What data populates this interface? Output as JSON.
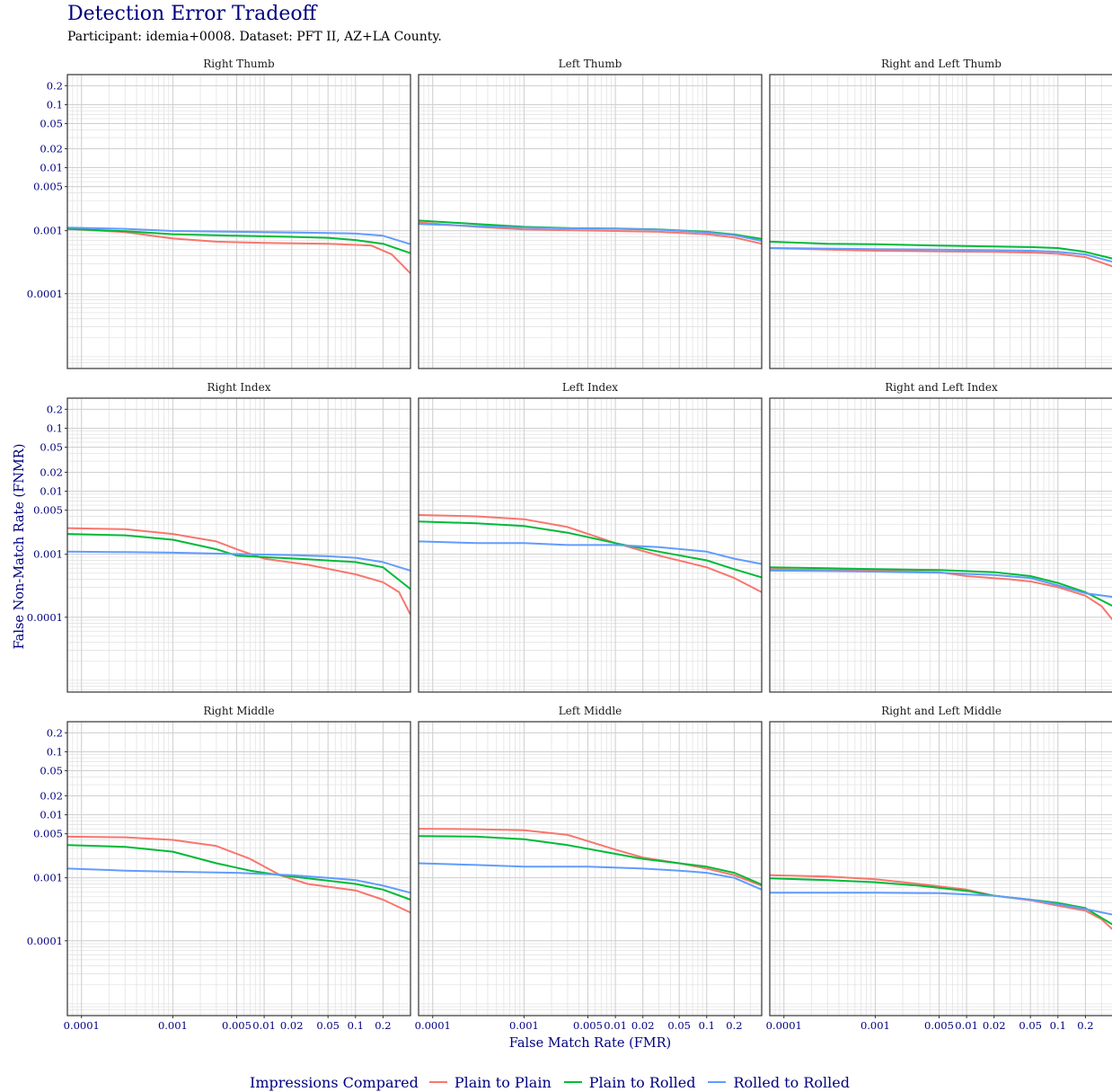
{
  "chart_data": {
    "type": "line",
    "title": "Detection Error Tradeoff",
    "subtitle": "Participant: idemia+0008. Dataset: PFT II, AZ+LA County.",
    "xlabel": "False Match Rate (FMR)",
    "ylabel": "False Non-Match Rate (FNMR)",
    "x_scale": "log",
    "y_scale": "log",
    "xlim": [
      7e-05,
      0.4
    ],
    "ylim": [
      6.5e-06,
      0.3
    ],
    "x_ticks": [
      0.0001,
      0.001,
      0.005,
      0.01,
      0.02,
      0.05,
      0.1,
      0.2
    ],
    "x_tick_labels": [
      "0.0001",
      "0.001",
      "0.005",
      "0.01",
      "0.02",
      "0.05",
      "0.1",
      "0.2"
    ],
    "y_ticks": [
      0.2,
      0.1,
      0.05,
      0.02,
      0.01,
      0.005,
      0.001,
      0.0001
    ],
    "y_tick_labels": [
      "0.2",
      "0.1",
      "0.05",
      "0.02",
      "0.01",
      "0.005",
      "0.001",
      "0.0001"
    ],
    "grid": true,
    "legend": {
      "title": "Impressions Compared",
      "position": "bottom",
      "entries": [
        {
          "label": "Plain to Plain",
          "color": "#F8766D"
        },
        {
          "label": "Plain to Rolled",
          "color": "#00BA38"
        },
        {
          "label": "Rolled to Rolled",
          "color": "#619CFF"
        }
      ]
    },
    "panels": [
      {
        "title": "Right Thumb",
        "series": [
          {
            "name": "Plain to Plain",
            "x": [
              7e-05,
              0.0003,
              0.001,
              0.003,
              0.01,
              0.05,
              0.15,
              0.25,
              0.4
            ],
            "y": [
              0.00107,
              0.00095,
              0.00075,
              0.00067,
              0.00064,
              0.00062,
              0.00058,
              0.00042,
              0.00021
            ]
          },
          {
            "name": "Plain to Rolled",
            "x": [
              7e-05,
              0.0003,
              0.001,
              0.005,
              0.02,
              0.05,
              0.1,
              0.2,
              0.4
            ],
            "y": [
              0.00107,
              0.00098,
              0.00088,
              0.00083,
              0.0008,
              0.00077,
              0.00071,
              0.00062,
              0.00044
            ]
          },
          {
            "name": "Rolled to Rolled",
            "x": [
              7e-05,
              0.0003,
              0.001,
              0.005,
              0.02,
              0.05,
              0.1,
              0.2,
              0.4
            ],
            "y": [
              0.00112,
              0.00107,
              0.00099,
              0.00096,
              0.00094,
              0.00092,
              0.0009,
              0.00083,
              0.00061
            ]
          }
        ]
      },
      {
        "title": "Left Thumb",
        "series": [
          {
            "name": "Plain to Plain",
            "x": [
              7e-05,
              0.0003,
              0.001,
              0.003,
              0.01,
              0.03,
              0.1,
              0.2,
              0.4
            ],
            "y": [
              0.00135,
              0.00115,
              0.00105,
              0.00102,
              0.00099,
              0.00096,
              0.00088,
              0.00078,
              0.00062
            ]
          },
          {
            "name": "Plain to Rolled",
            "x": [
              7e-05,
              0.0003,
              0.001,
              0.003,
              0.01,
              0.03,
              0.1,
              0.2,
              0.4
            ],
            "y": [
              0.00145,
              0.00128,
              0.00115,
              0.0011,
              0.00108,
              0.00105,
              0.00096,
              0.00087,
              0.00074
            ]
          },
          {
            "name": "Rolled to Rolled",
            "x": [
              7e-05,
              0.0003,
              0.001,
              0.003,
              0.01,
              0.03,
              0.1,
              0.2,
              0.4
            ],
            "y": [
              0.00128,
              0.00118,
              0.00112,
              0.00109,
              0.00107,
              0.00104,
              0.00094,
              0.00085,
              0.00069
            ]
          }
        ]
      },
      {
        "title": "Right and Left Thumb",
        "series": [
          {
            "name": "Plain to Plain",
            "x": [
              7e-05,
              0.0003,
              0.001,
              0.005,
              0.02,
              0.05,
              0.1,
              0.2,
              0.4
            ],
            "y": [
              0.00053,
              0.0005,
              0.00048,
              0.00047,
              0.00046,
              0.00045,
              0.00043,
              0.00038,
              0.00027
            ]
          },
          {
            "name": "Plain to Rolled",
            "x": [
              7e-05,
              0.0003,
              0.001,
              0.005,
              0.02,
              0.05,
              0.1,
              0.2,
              0.4
            ],
            "y": [
              0.00067,
              0.00062,
              0.00061,
              0.00058,
              0.00056,
              0.00055,
              0.00053,
              0.00046,
              0.00036
            ]
          },
          {
            "name": "Rolled to Rolled",
            "x": [
              7e-05,
              0.0003,
              0.001,
              0.005,
              0.02,
              0.05,
              0.1,
              0.2,
              0.4
            ],
            "y": [
              0.00053,
              0.00052,
              0.00051,
              0.0005,
              0.00049,
              0.00048,
              0.00046,
              0.00042,
              0.00032
            ]
          }
        ]
      },
      {
        "title": "Right Index",
        "series": [
          {
            "name": "Plain to Plain",
            "x": [
              7e-05,
              0.0003,
              0.001,
              0.003,
              0.005,
              0.01,
              0.03,
              0.1,
              0.2,
              0.3,
              0.4
            ],
            "y": [
              0.0026,
              0.0025,
              0.0021,
              0.0016,
              0.0012,
              0.00085,
              0.00068,
              0.00048,
              0.00036,
              0.00025,
              0.00011
            ]
          },
          {
            "name": "Plain to Rolled",
            "x": [
              7e-05,
              0.0003,
              0.001,
              0.003,
              0.005,
              0.01,
              0.03,
              0.1,
              0.2,
              0.4
            ],
            "y": [
              0.0021,
              0.002,
              0.0017,
              0.0012,
              0.00095,
              0.0009,
              0.00083,
              0.00075,
              0.00062,
              0.00028
            ]
          },
          {
            "name": "Rolled to Rolled",
            "x": [
              7e-05,
              0.0003,
              0.001,
              0.005,
              0.02,
              0.05,
              0.1,
              0.2,
              0.4
            ],
            "y": [
              0.0011,
              0.00108,
              0.00106,
              0.00101,
              0.00097,
              0.00093,
              0.00088,
              0.00075,
              0.00055
            ]
          }
        ]
      },
      {
        "title": "Left Index",
        "series": [
          {
            "name": "Plain to Plain",
            "x": [
              7e-05,
              0.0003,
              0.001,
              0.003,
              0.01,
              0.03,
              0.1,
              0.2,
              0.4
            ],
            "y": [
              0.0042,
              0.004,
              0.0036,
              0.0027,
              0.0015,
              0.00095,
              0.00062,
              0.00042,
              0.00025
            ]
          },
          {
            "name": "Plain to Rolled",
            "x": [
              7e-05,
              0.0003,
              0.001,
              0.003,
              0.01,
              0.03,
              0.1,
              0.2,
              0.4
            ],
            "y": [
              0.0033,
              0.0031,
              0.0028,
              0.0022,
              0.0015,
              0.0011,
              0.0008,
              0.00058,
              0.00043
            ]
          },
          {
            "name": "Rolled to Rolled",
            "x": [
              7e-05,
              0.0003,
              0.001,
              0.003,
              0.01,
              0.03,
              0.1,
              0.2,
              0.4
            ],
            "y": [
              0.0016,
              0.0015,
              0.0015,
              0.0014,
              0.0014,
              0.0013,
              0.0011,
              0.00085,
              0.0007
            ]
          }
        ]
      },
      {
        "title": "Right and Left Index",
        "series": [
          {
            "name": "Plain to Plain",
            "x": [
              7e-05,
              0.0003,
              0.001,
              0.005,
              0.01,
              0.03,
              0.05,
              0.1,
              0.2,
              0.3,
              0.4
            ],
            "y": [
              0.00058,
              0.00056,
              0.00055,
              0.00052,
              0.00045,
              0.0004,
              0.00037,
              0.0003,
              0.00022,
              0.00015,
              9e-05
            ]
          },
          {
            "name": "Plain to Rolled",
            "x": [
              7e-05,
              0.0003,
              0.001,
              0.005,
              0.02,
              0.05,
              0.1,
              0.2,
              0.4
            ],
            "y": [
              0.00062,
              0.0006,
              0.00058,
              0.00056,
              0.00052,
              0.00045,
              0.00035,
              0.00025,
              0.00015
            ]
          },
          {
            "name": "Rolled to Rolled",
            "x": [
              7e-05,
              0.0003,
              0.001,
              0.005,
              0.02,
              0.05,
              0.1,
              0.2,
              0.4
            ],
            "y": [
              0.00055,
              0.00054,
              0.00053,
              0.00051,
              0.00047,
              0.00042,
              0.00032,
              0.00024,
              0.00021
            ]
          }
        ]
      },
      {
        "title": "Right Middle",
        "series": [
          {
            "name": "Plain to Plain",
            "x": [
              7e-05,
              0.0003,
              0.001,
              0.003,
              0.007,
              0.015,
              0.03,
              0.1,
              0.2,
              0.4
            ],
            "y": [
              0.0045,
              0.0044,
              0.004,
              0.0032,
              0.002,
              0.0011,
              0.0008,
              0.00063,
              0.00045,
              0.00028
            ]
          },
          {
            "name": "Plain to Rolled",
            "x": [
              7e-05,
              0.0003,
              0.001,
              0.003,
              0.007,
              0.015,
              0.05,
              0.1,
              0.2,
              0.4
            ],
            "y": [
              0.0033,
              0.0031,
              0.0026,
              0.0017,
              0.0013,
              0.0011,
              0.0009,
              0.0008,
              0.00065,
              0.00045
            ]
          },
          {
            "name": "Rolled to Rolled",
            "x": [
              7e-05,
              0.0003,
              0.001,
              0.005,
              0.02,
              0.05,
              0.1,
              0.2,
              0.4
            ],
            "y": [
              0.0014,
              0.0013,
              0.00125,
              0.0012,
              0.0011,
              0.001,
              0.00092,
              0.00075,
              0.00058
            ]
          }
        ]
      },
      {
        "title": "Left Middle",
        "series": [
          {
            "name": "Plain to Plain",
            "x": [
              7e-05,
              0.0003,
              0.001,
              0.003,
              0.01,
              0.02,
              0.05,
              0.1,
              0.2,
              0.4
            ],
            "y": [
              0.006,
              0.0059,
              0.0057,
              0.0048,
              0.0028,
              0.0021,
              0.0017,
              0.0014,
              0.0011,
              0.00075
            ]
          },
          {
            "name": "Plain to Rolled",
            "x": [
              7e-05,
              0.0003,
              0.001,
              0.003,
              0.01,
              0.02,
              0.05,
              0.1,
              0.2,
              0.4
            ],
            "y": [
              0.0046,
              0.0045,
              0.0041,
              0.0033,
              0.0024,
              0.002,
              0.0017,
              0.0015,
              0.0012,
              0.00078
            ]
          },
          {
            "name": "Rolled to Rolled",
            "x": [
              7e-05,
              0.0003,
              0.001,
              0.005,
              0.02,
              0.05,
              0.1,
              0.2,
              0.4
            ],
            "y": [
              0.0017,
              0.0016,
              0.0015,
              0.0015,
              0.0014,
              0.0013,
              0.0012,
              0.001,
              0.00065
            ]
          }
        ]
      },
      {
        "title": "Right and Left Middle",
        "series": [
          {
            "name": "Plain to Plain",
            "x": [
              7e-05,
              0.0003,
              0.001,
              0.003,
              0.01,
              0.02,
              0.05,
              0.1,
              0.2,
              0.3,
              0.4
            ],
            "y": [
              0.0011,
              0.00105,
              0.00095,
              0.0008,
              0.00065,
              0.00052,
              0.00044,
              0.00036,
              0.0003,
              0.00022,
              0.00015
            ]
          },
          {
            "name": "Plain to Rolled",
            "x": [
              7e-05,
              0.0003,
              0.001,
              0.003,
              0.01,
              0.02,
              0.05,
              0.1,
              0.2,
              0.4
            ],
            "y": [
              0.00098,
              0.00092,
              0.00085,
              0.00075,
              0.00062,
              0.00052,
              0.00045,
              0.0004,
              0.00033,
              0.00018
            ]
          },
          {
            "name": "Rolled to Rolled",
            "x": [
              7e-05,
              0.0003,
              0.001,
              0.005,
              0.02,
              0.05,
              0.1,
              0.2,
              0.4
            ],
            "y": [
              0.00058,
              0.00058,
              0.00058,
              0.00057,
              0.00052,
              0.00045,
              0.00038,
              0.00032,
              0.00026
            ]
          }
        ]
      }
    ]
  }
}
